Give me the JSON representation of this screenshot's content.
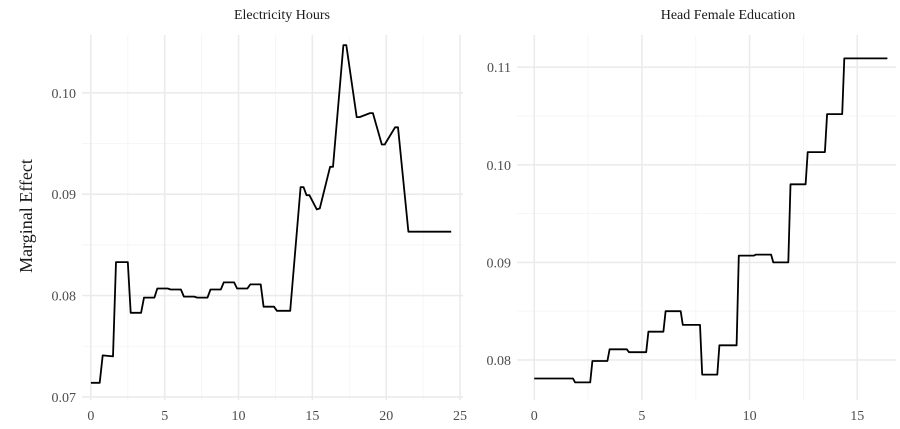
{
  "ylabel": "Marginal Effect",
  "chart_data": [
    {
      "type": "line",
      "title": "Electricity Hours",
      "xlabel": "",
      "ylabel": "Marginal Effect",
      "xlim": [
        -0.6,
        25.2
      ],
      "ylim": [
        0.0697,
        0.1057
      ],
      "xticks": [
        0,
        5,
        10,
        15,
        20,
        25
      ],
      "xtick_labels": [
        "0",
        "5",
        "10",
        "15",
        "20",
        "25"
      ],
      "yticks": [
        0.07,
        0.08,
        0.09,
        0.1
      ],
      "ytick_labels": [
        "0.07",
        "0.08",
        "0.09",
        "0.10"
      ],
      "grid": true,
      "x": [
        0,
        0.6,
        0.8,
        1.5,
        1.7,
        2.3,
        2.5,
        2.7,
        3.4,
        3.6,
        4.3,
        4.5,
        5.2,
        5.4,
        6.1,
        6.3,
        7.0,
        7.2,
        7.9,
        8.1,
        8.8,
        9.0,
        9.7,
        9.9,
        10.6,
        10.8,
        11.5,
        11.7,
        12.4,
        12.6,
        13.3,
        13.5,
        14.2,
        14.4,
        14.6,
        14.8,
        15.3,
        15.5,
        16.2,
        16.4,
        17.1,
        17.3,
        18.0,
        18.2,
        18.9,
        19.1,
        19.7,
        19.9,
        20.6,
        20.8,
        21.5,
        21.7,
        22.4,
        22.6,
        23.3,
        23.5,
        24.2,
        24.4
      ],
      "series": [
        {
          "values": [
            0.0714,
            0.0714,
            0.0741,
            0.074,
            0.0833,
            0.0833,
            0.0833,
            0.0783,
            0.0783,
            0.0798,
            0.0798,
            0.0807,
            0.0807,
            0.0806,
            0.0806,
            0.0799,
            0.0799,
            0.0798,
            0.0798,
            0.0806,
            0.0806,
            0.0813,
            0.0813,
            0.0807,
            0.0807,
            0.0811,
            0.0811,
            0.0789,
            0.0789,
            0.0785,
            0.0785,
            0.0785,
            0.0907,
            0.0907,
            0.0899,
            0.0899,
            0.0885,
            0.0886,
            0.0927,
            0.0927,
            0.1047,
            0.1047,
            0.0976,
            0.0976,
            0.098,
            0.098,
            0.0949,
            0.0949,
            0.0966,
            0.0966,
            0.0863,
            0.0863,
            0.0863,
            0.0863,
            0.0863,
            0.0863,
            0.0863,
            0.0863
          ]
        }
      ]
    },
    {
      "type": "line",
      "title": "Head Female Education",
      "xlabel": "",
      "ylabel": "",
      "xlim": [
        -0.8,
        16.8
      ],
      "ylim": [
        0.0759,
        0.1133
      ],
      "xticks": [
        0,
        5,
        10,
        15
      ],
      "xtick_labels": [
        "0",
        "5",
        "10",
        "15"
      ],
      "yticks": [
        0.08,
        0.09,
        0.1,
        0.11
      ],
      "ytick_labels": [
        "0.08",
        "0.09",
        "0.10",
        "0.11"
      ],
      "grid": true,
      "x": [
        0,
        1.8,
        1.9,
        2.6,
        2.7,
        3.4,
        3.5,
        4.3,
        4.4,
        5.2,
        5.3,
        6.0,
        6.1,
        6.8,
        6.9,
        7.7,
        7.8,
        8.5,
        8.6,
        9.4,
        9.5,
        10.2,
        10.3,
        11.0,
        11.1,
        11.8,
        11.9,
        12.6,
        12.7,
        13.5,
        13.6,
        14.3,
        14.4,
        15.1,
        15.2,
        15.9,
        16.0,
        16.4
      ],
      "series": [
        {
          "values": [
            0.0781,
            0.0781,
            0.0777,
            0.0777,
            0.0799,
            0.0799,
            0.0811,
            0.0811,
            0.0808,
            0.0808,
            0.0829,
            0.0829,
            0.085,
            0.085,
            0.0836,
            0.0836,
            0.0785,
            0.0785,
            0.0815,
            0.0815,
            0.0907,
            0.0907,
            0.0908,
            0.0908,
            0.09,
            0.09,
            0.098,
            0.098,
            0.1013,
            0.1013,
            0.1052,
            0.1052,
            0.1109,
            0.1109,
            0.1109,
            0.1109,
            0.1109,
            0.1109
          ]
        }
      ]
    }
  ]
}
